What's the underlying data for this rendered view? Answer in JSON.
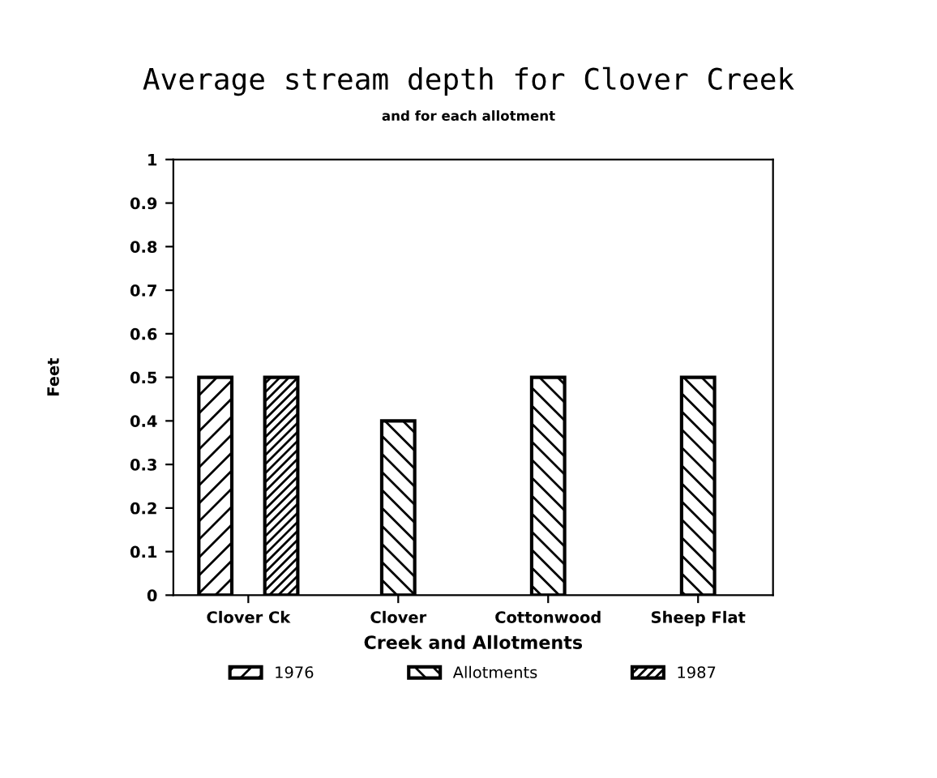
{
  "chart_data": {
    "type": "bar",
    "title": "Average stream depth for Clover Creek",
    "subtitle": "and for each allotment",
    "xlabel": "Creek and Allotments",
    "ylabel": "Feet",
    "categories": [
      "Clover Ck",
      "Clover",
      "Cottonwood",
      "Sheep Flat"
    ],
    "series": [
      {
        "name": "1976",
        "color": "#000000",
        "values": [
          0.5,
          null,
          null,
          null
        ]
      },
      {
        "name": "Allotments",
        "color": "#000000",
        "values": [
          null,
          0.4,
          0.5,
          0.5
        ]
      },
      {
        "name": "1987",
        "color": "#000000",
        "values": [
          0.5,
          null,
          null,
          null
        ]
      }
    ],
    "ylim": [
      0,
      1
    ],
    "yticks": [
      0,
      0.1,
      0.2,
      0.3,
      0.4,
      0.5,
      0.6,
      0.7,
      0.8,
      0.9,
      1
    ],
    "grid": false,
    "legend": "bottom"
  }
}
